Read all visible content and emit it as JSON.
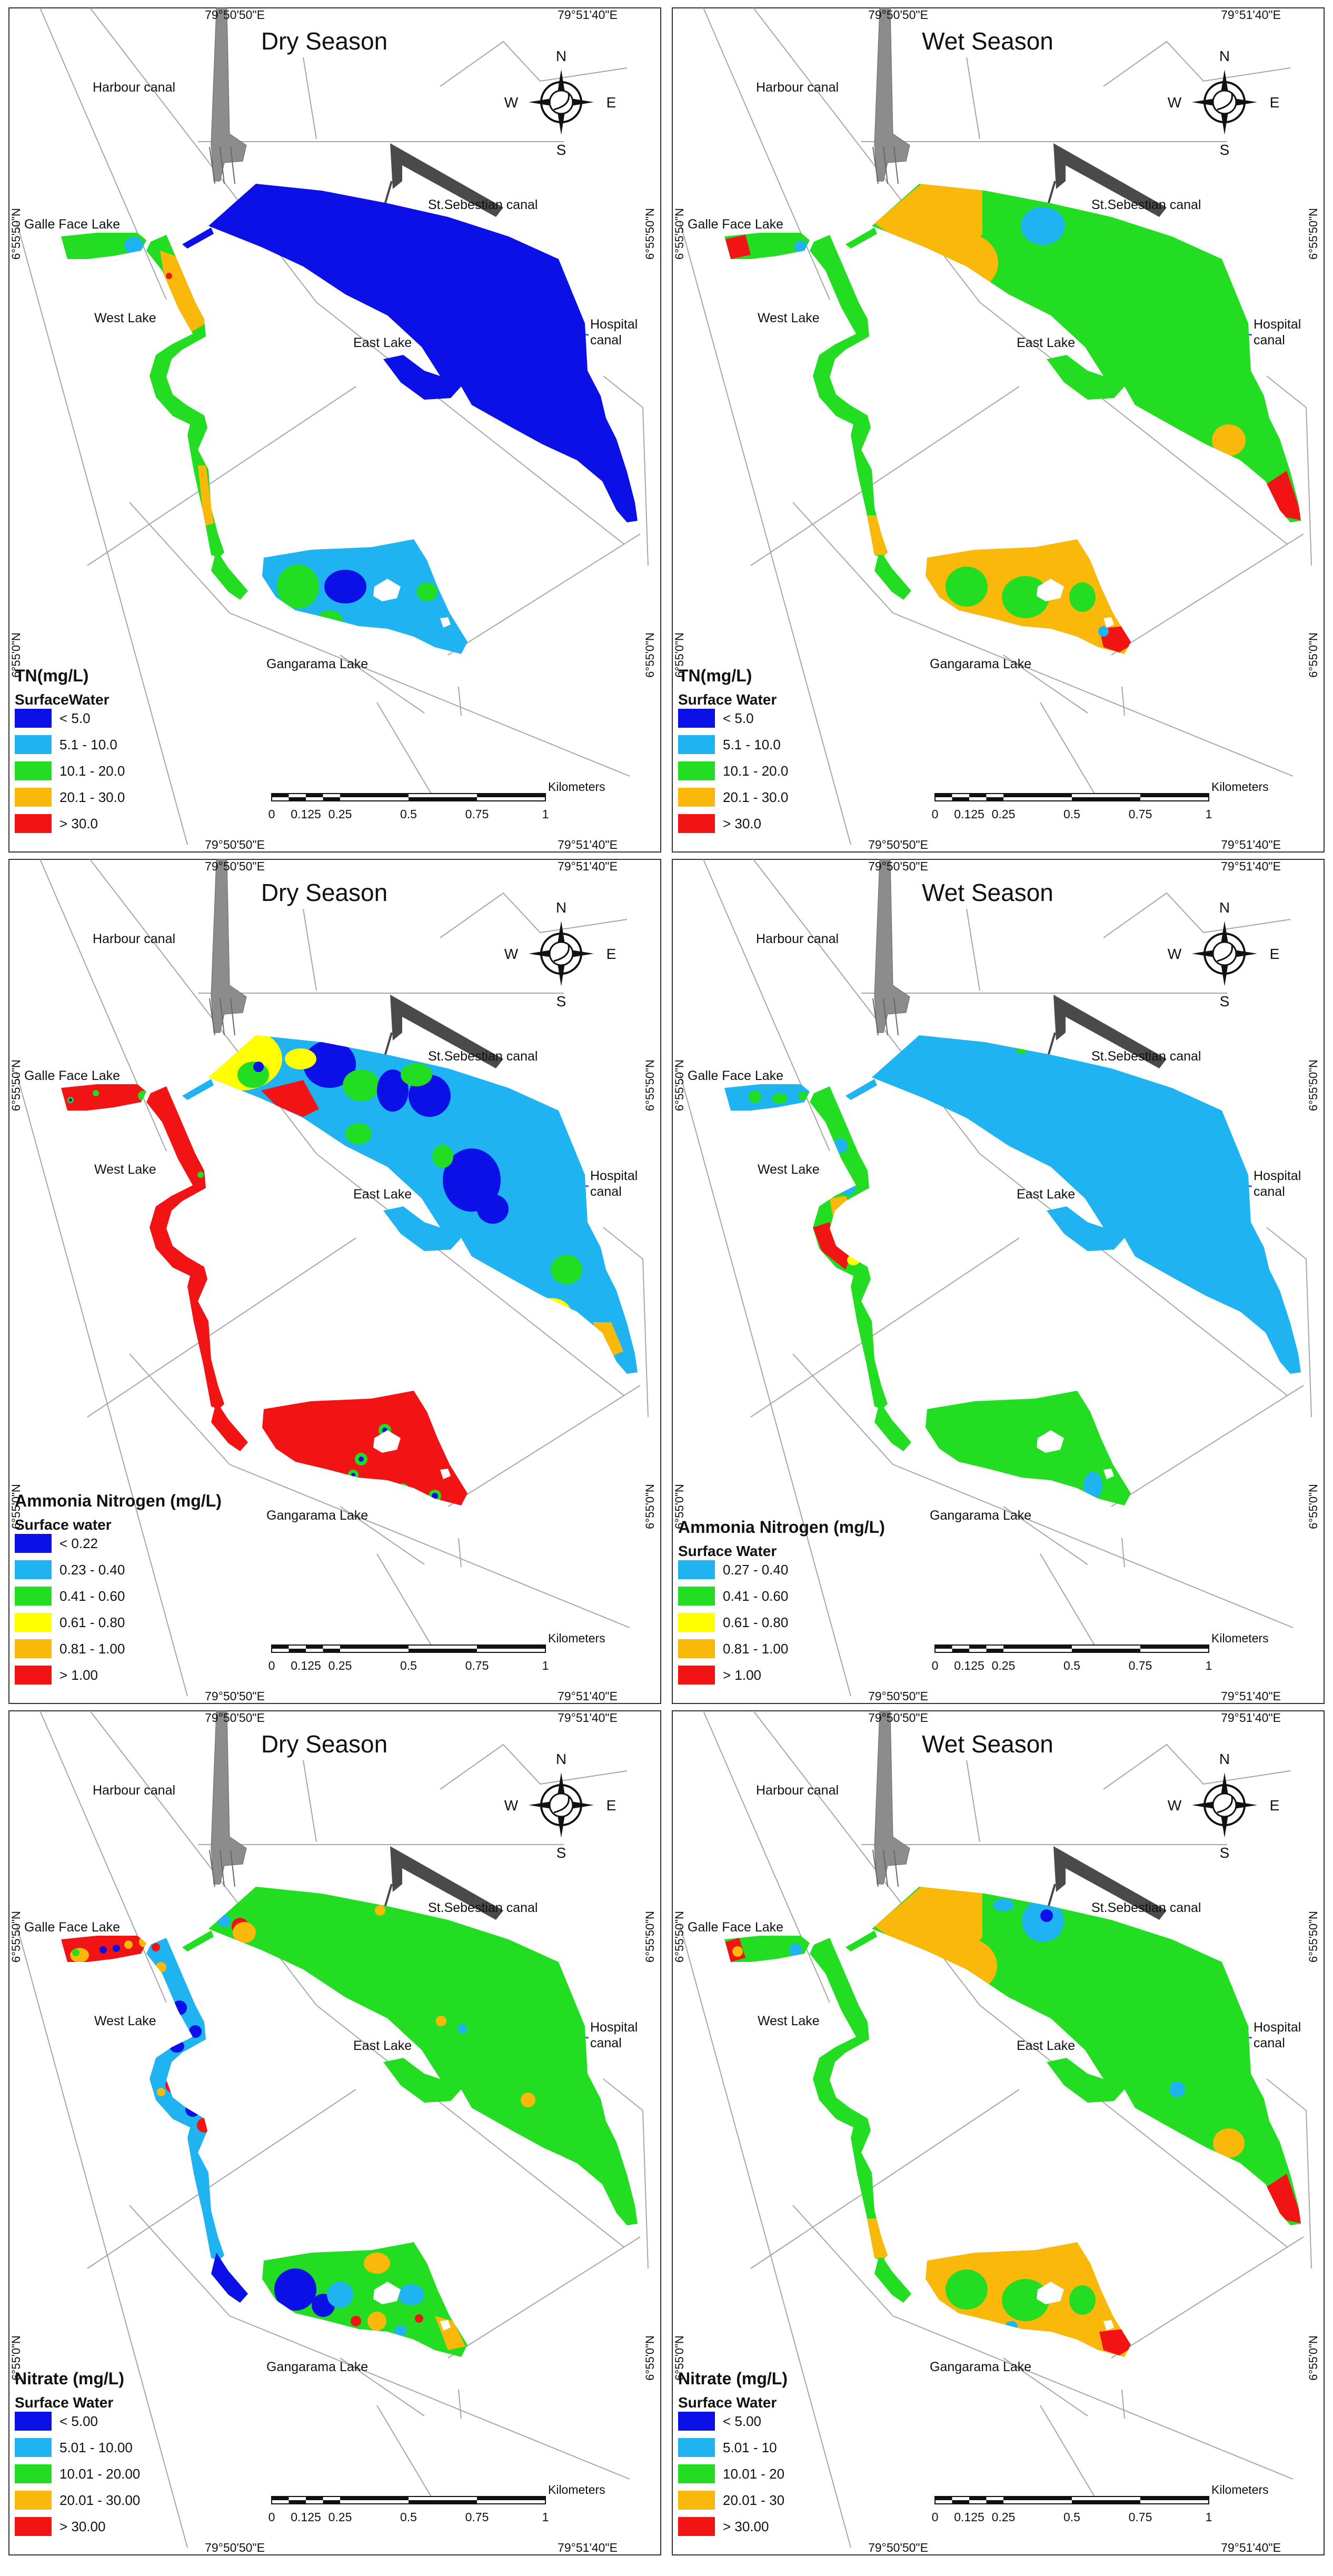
{
  "coordinates": {
    "lon_left": "79°50'50\"E",
    "lon_right": "79°51'40\"E",
    "lat_top": "6°55'50\"N",
    "lat_bottom": "6°55'0\"N"
  },
  "compass": {
    "n": "N",
    "s": "S",
    "e": "E",
    "w": "W"
  },
  "scalebar": {
    "unit": "Kilometers",
    "ticks": [
      "0",
      "0.125",
      "0.25",
      "0.5",
      "0.75",
      "1"
    ]
  },
  "place_labels": {
    "harbour": "Harbour canal",
    "st_sebastian": "St.Sebestian canal",
    "galle_face": "Galle Face Lake",
    "west_lake": "West Lake",
    "east_lake": "East Lake",
    "hospital": "Hospital\ncanal",
    "gangarama": "Gangarama Lake"
  },
  "colors": {
    "dark_blue": "#0b10e6",
    "light_blue": "#1fb3f2",
    "green": "#22dd22",
    "yellow": "#ffff00",
    "orange": "#f9b80a",
    "red": "#f21414",
    "canal_gray": "#8c8c8c",
    "canal_dark": "#4a4a4a",
    "road_gray": "#a6a6a6"
  },
  "panels": [
    {
      "season": "Dry Season",
      "legend": {
        "title": "TN(mg/L)",
        "subtitle": "SurfaceWater",
        "classes": [
          {
            "label": "< 5.0",
            "color": "dark_blue"
          },
          {
            "label": "5.1 - 10.0",
            "color": "light_blue"
          },
          {
            "label": "10.1 - 20.0",
            "color": "green"
          },
          {
            "label": "20.1 - 30.0",
            "color": "orange"
          },
          {
            "label": "> 30.0",
            "color": "red"
          }
        ]
      },
      "zone_classes": {
        "gf": "green",
        "wl": "green",
        "sc": "green",
        "el": "dark_blue",
        "gl": "light_blue"
      }
    },
    {
      "season": "Wet Season",
      "legend": {
        "title": "TN(mg/L)",
        "subtitle": "Surface Water",
        "classes": [
          {
            "label": "< 5.0",
            "color": "dark_blue"
          },
          {
            "label": "5.1 - 10.0",
            "color": "light_blue"
          },
          {
            "label": "10.1 - 20.0",
            "color": "green"
          },
          {
            "label": "20.1 - 30.0",
            "color": "orange"
          },
          {
            "label": "> 30.0",
            "color": "red"
          }
        ]
      },
      "zone_classes": {
        "gf": "green",
        "wl": "green",
        "sc": "green",
        "el": "green",
        "gl": "orange"
      }
    },
    {
      "season": "Dry Season",
      "legend": {
        "title": "Ammonia Nitrogen (mg/L)",
        "subtitle": "Surface water",
        "classes": [
          {
            "label": "< 0.22",
            "color": "dark_blue"
          },
          {
            "label": "0.23 - 0.40",
            "color": "light_blue"
          },
          {
            "label": "0.41 - 0.60",
            "color": "green"
          },
          {
            "label": "0.61 - 0.80",
            "color": "yellow"
          },
          {
            "label": "0.81 - 1.00",
            "color": "orange"
          },
          {
            "label": "> 1.00",
            "color": "red"
          }
        ]
      },
      "zone_classes": {
        "gf": "red",
        "wl": "red",
        "sc": "red",
        "el": "light_blue",
        "gl": "red"
      }
    },
    {
      "season": "Wet Season",
      "legend": {
        "title": "Ammonia Nitrogen (mg/L)",
        "subtitle": "Surface Water",
        "classes": [
          {
            "label": "0.27 - 0.40",
            "color": "light_blue"
          },
          {
            "label": "0.41 - 0.60",
            "color": "green"
          },
          {
            "label": "0.61 - 0.80",
            "color": "yellow"
          },
          {
            "label": "0.81 - 1.00",
            "color": "orange"
          },
          {
            "label": "> 1.00",
            "color": "red"
          }
        ]
      },
      "zone_classes": {
        "gf": "light_blue",
        "wl": "green",
        "sc": "green",
        "el": "light_blue",
        "gl": "green"
      }
    },
    {
      "season": "Dry Season",
      "legend": {
        "title": "Nitrate (mg/L)",
        "subtitle": "Surface Water",
        "classes": [
          {
            "label": "< 5.00",
            "color": "dark_blue"
          },
          {
            "label": "5.01 - 10.00",
            "color": "light_blue"
          },
          {
            "label": "10.01 - 20.00",
            "color": "green"
          },
          {
            "label": "20.01 - 30.00",
            "color": "orange"
          },
          {
            "label": "> 30.00",
            "color": "red"
          }
        ]
      },
      "zone_classes": {
        "gf": "red",
        "wl": "light_blue",
        "sc": "dark_blue",
        "el": "green",
        "gl": "green"
      }
    },
    {
      "season": "Wet Season",
      "legend": {
        "title": "Nitrate (mg/L)",
        "subtitle": "Surface Water",
        "classes": [
          {
            "label": "< 5.00",
            "color": "dark_blue"
          },
          {
            "label": "5.01 - 10",
            "color": "light_blue"
          },
          {
            "label": "10.01 - 20",
            "color": "green"
          },
          {
            "label": "20.01 - 30",
            "color": "orange"
          },
          {
            "label": "> 30.00",
            "color": "red"
          }
        ]
      },
      "zone_classes": {
        "gf": "green",
        "wl": "green",
        "sc": "green",
        "el": "green",
        "gl": "orange"
      }
    }
  ]
}
